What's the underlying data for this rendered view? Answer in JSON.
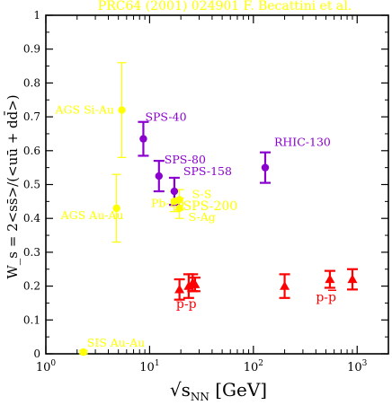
{
  "chart_data": {
    "type": "scatter",
    "title": "PRC64 (2001) 024901  F. Becattini et al.",
    "xlabel": {
      "main": "√s",
      "sub": "NN",
      "unit": " [GeV]"
    },
    "ylabel": "W_s = 2<ss̄>/(<uū + dd̄>)",
    "x_scale": "log",
    "xlim": [
      1,
      2000
    ],
    "ylim": [
      0,
      1
    ],
    "x_ticks": [
      {
        "value": 1,
        "base": "10",
        "exp": "0"
      },
      {
        "value": 10,
        "base": "10",
        "exp": "1"
      },
      {
        "value": 100,
        "base": "10",
        "exp": "2"
      },
      {
        "value": 1000,
        "base": "10",
        "exp": "3"
      }
    ],
    "y_ticks": [
      "0",
      "0.1",
      "0.2",
      "0.3",
      "0.4",
      "0.5",
      "0.6",
      "0.7",
      "0.8",
      "0.9",
      "1"
    ],
    "grid": false,
    "legend": "none",
    "colors": {
      "yellow": "#ffff00",
      "purple": "#8b00d0",
      "red": "#ff0000",
      "axis": "#000000"
    },
    "series": [
      {
        "color": "#ffff00",
        "marker": "circle",
        "points": [
          {
            "x": 5.4,
            "y": 0.72,
            "err": 0.14,
            "label": "AGS Si-Au"
          },
          {
            "x": 4.8,
            "y": 0.43,
            "err": 0.1,
            "label": "AGS Au-Au"
          },
          {
            "x": 17.3,
            "y": 0.45,
            "err": 0.03,
            "label": "Pb-Pb"
          },
          {
            "x": 19.4,
            "y": 0.455,
            "err": 0.03,
            "label": "S-S"
          },
          {
            "x": 19.4,
            "y": 0.43,
            "err": 0.03,
            "label": "S-Ag"
          },
          {
            "x": 2.3,
            "y": 0.005,
            "err": 0.005,
            "label": "SIS Au-Au"
          }
        ]
      },
      {
        "color": "#8b00d0",
        "marker": "circle",
        "points": [
          {
            "x": 8.7,
            "y": 0.635,
            "err": 0.05,
            "label": "SPS-40"
          },
          {
            "x": 12.3,
            "y": 0.525,
            "err": 0.045,
            "label": "SPS-80"
          },
          {
            "x": 17.3,
            "y": 0.48,
            "err": 0.04,
            "label": "SPS-158"
          },
          {
            "x": 130,
            "y": 0.55,
            "err": 0.045,
            "label": "RHIC-130"
          }
        ]
      },
      {
        "color": "#ff0000",
        "marker": "triangle",
        "points": [
          {
            "x": 19.4,
            "y": 0.19,
            "err": 0.03
          },
          {
            "x": 23.8,
            "y": 0.2,
            "err": 0.035
          },
          {
            "x": 26,
            "y": 0.21,
            "err": 0.025
          },
          {
            "x": 27.4,
            "y": 0.205,
            "err": 0.02
          },
          {
            "x": 200,
            "y": 0.2,
            "err": 0.035
          },
          {
            "x": 546,
            "y": 0.22,
            "err": 0.025
          },
          {
            "x": 900,
            "y": 0.22,
            "err": 0.03
          }
        ]
      }
    ],
    "annotations": [
      {
        "text": "SPS-200",
        "color": "#ffff00",
        "x": 21,
        "y": 0.425
      },
      {
        "text": "p-p",
        "overline": "",
        "color": "#ff0000",
        "x": 18,
        "y": 0.135
      },
      {
        "text": "p-",
        "overline": "p",
        "color": "#ff0000",
        "x": 400,
        "y": 0.155
      }
    ]
  }
}
